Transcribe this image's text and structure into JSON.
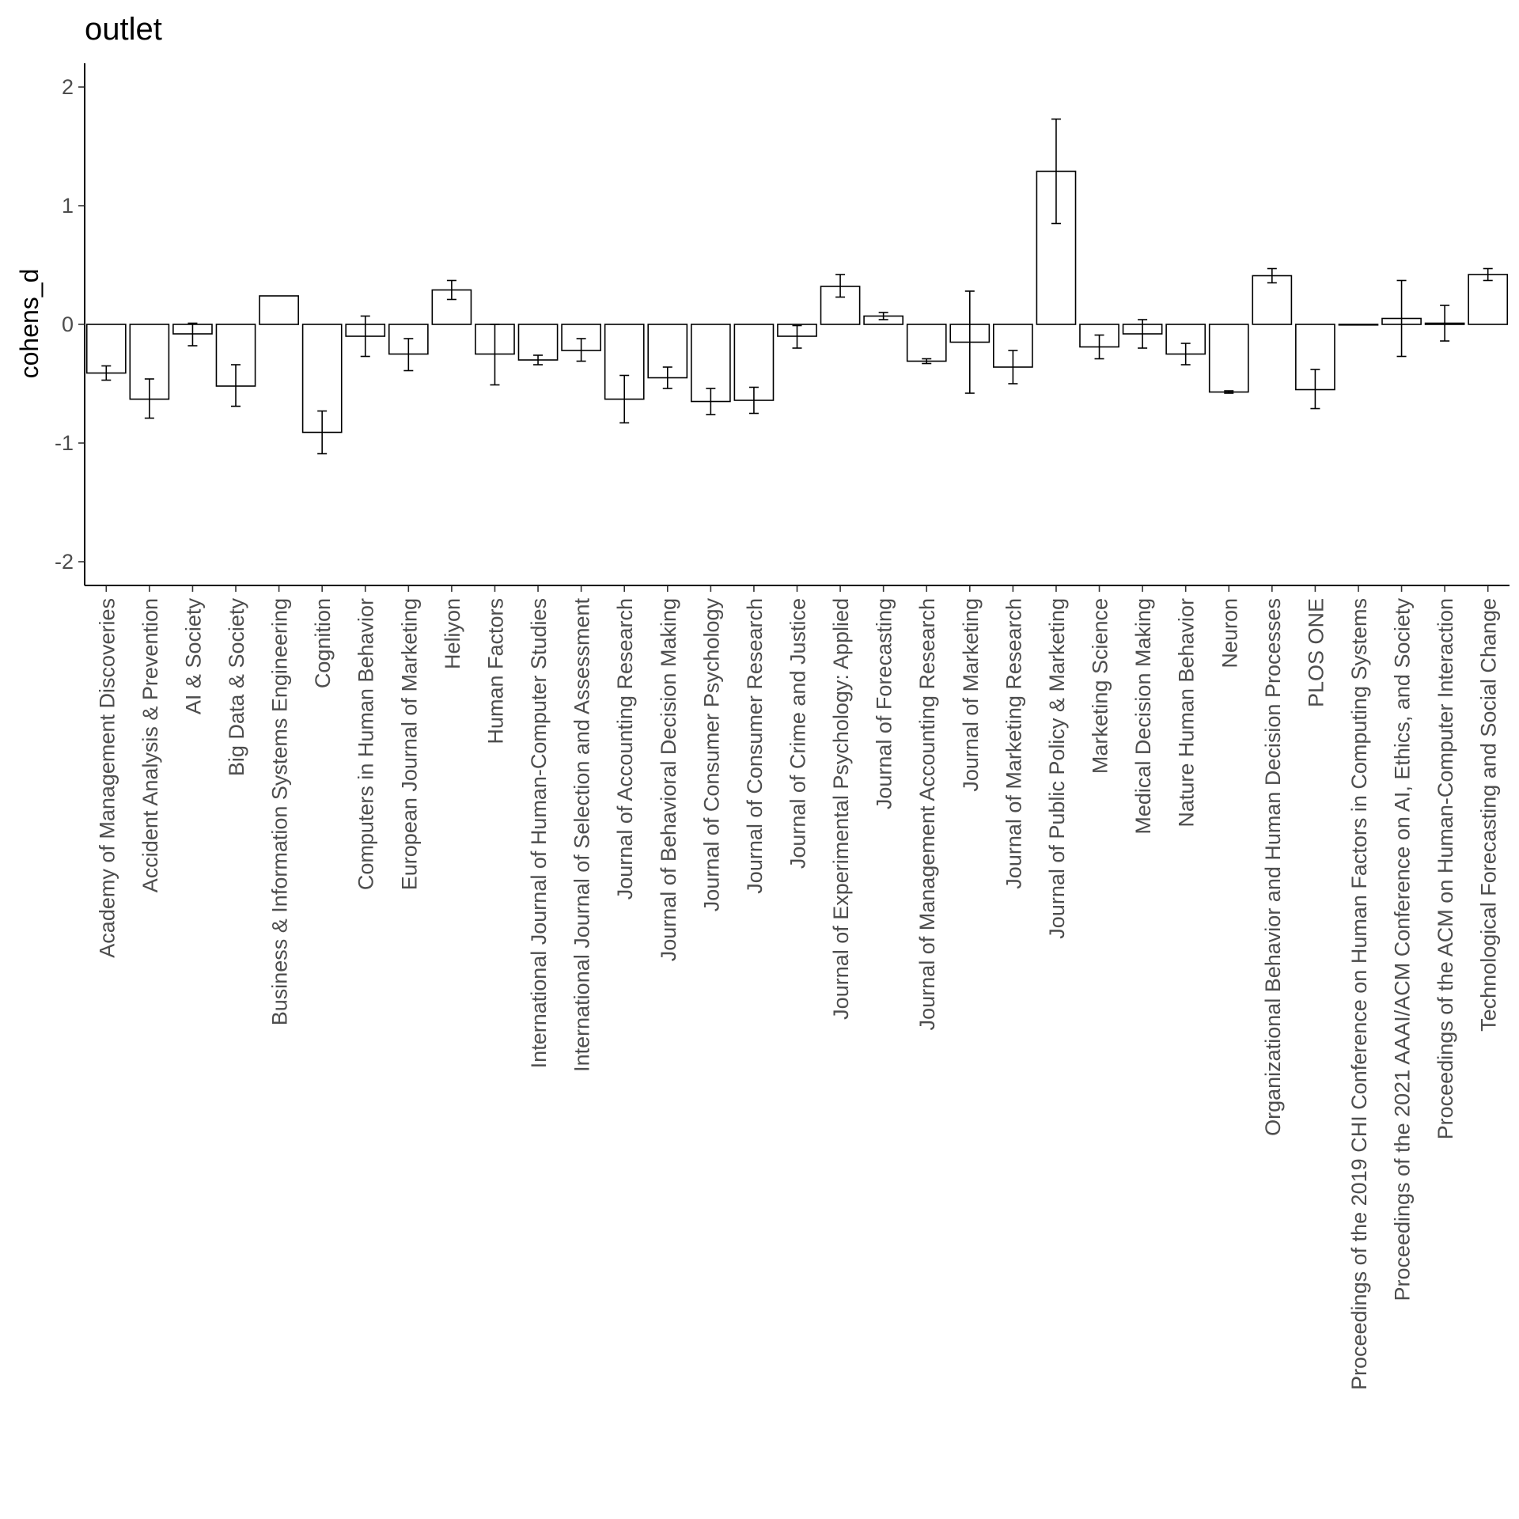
{
  "chart_data": {
    "type": "bar",
    "title": "outlet",
    "xlabel": "",
    "ylabel": "cohens_d",
    "ylim": [
      -2.2,
      2.2
    ],
    "yticks": [
      -2,
      -1,
      0,
      1,
      2
    ],
    "grid": false,
    "bar_fill": "#ffffff",
    "bar_stroke": "#000000",
    "categories": [
      "Academy of Management Discoveries",
      "Accident Analysis & Prevention",
      "AI & Society",
      "Big Data & Society",
      "Business & Information Systems Engineering",
      "Cognition",
      "Computers in Human Behavior",
      "European Journal of Marketing",
      "Heliyon",
      "Human Factors",
      "International Journal of Human-Computer Studies",
      "International Journal of Selection and Assessment",
      "Journal of Accounting Research",
      "Journal of Behavioral Decision Making",
      "Journal of Consumer Psychology",
      "Journal of Consumer Research",
      "Journal of Crime and Justice",
      "Journal of Experimental Psychology: Applied",
      "Journal of Forecasting",
      "Journal of Management Accounting Research",
      "Journal of Marketing",
      "Journal of Marketing Research",
      "Journal of Public Policy & Marketing",
      "Marketing Science",
      "Medical Decision Making",
      "Nature Human Behavior",
      "Neuron",
      "Organizational Behavior and Human Decision Processes",
      "PLOS ONE",
      "Proceedings of the 2019 CHI Conference on Human Factors in Computing Systems",
      "Proceedings of the 2021 AAAI/ACM Conference on AI, Ethics, and Society",
      "Proceedings of the ACM on Human-Computer Interaction",
      "Technological Forecasting and Social Change"
    ],
    "values": [
      -0.41,
      -0.63,
      -0.08,
      -0.52,
      0.24,
      -0.91,
      -0.1,
      -0.25,
      0.29,
      -0.25,
      -0.3,
      -0.22,
      -0.63,
      -0.45,
      -0.65,
      -0.64,
      -0.1,
      0.32,
      0.07,
      -0.31,
      -0.15,
      -0.36,
      1.29,
      -0.19,
      -0.08,
      -0.25,
      -0.57,
      0.41,
      -0.55,
      0.0,
      0.05,
      0.01,
      0.42
    ],
    "error_low": [
      -0.47,
      -0.79,
      -0.18,
      -0.69,
      null,
      -1.09,
      -0.27,
      -0.39,
      0.21,
      -0.51,
      -0.34,
      -0.31,
      -0.83,
      -0.54,
      -0.76,
      -0.75,
      -0.2,
      0.23,
      0.04,
      -0.33,
      -0.58,
      -0.5,
      0.85,
      -0.29,
      -0.2,
      -0.34,
      -0.58,
      0.35,
      -0.71,
      null,
      -0.27,
      -0.14,
      0.37
    ],
    "error_high": [
      -0.35,
      -0.46,
      0.01,
      -0.34,
      null,
      -0.73,
      0.07,
      -0.12,
      0.37,
      0.0,
      -0.26,
      -0.12,
      -0.43,
      -0.36,
      -0.54,
      -0.53,
      -0.01,
      0.42,
      0.1,
      -0.29,
      0.28,
      -0.22,
      1.73,
      -0.09,
      0.04,
      -0.16,
      -0.56,
      0.47,
      -0.38,
      null,
      0.37,
      0.16,
      0.47
    ]
  }
}
